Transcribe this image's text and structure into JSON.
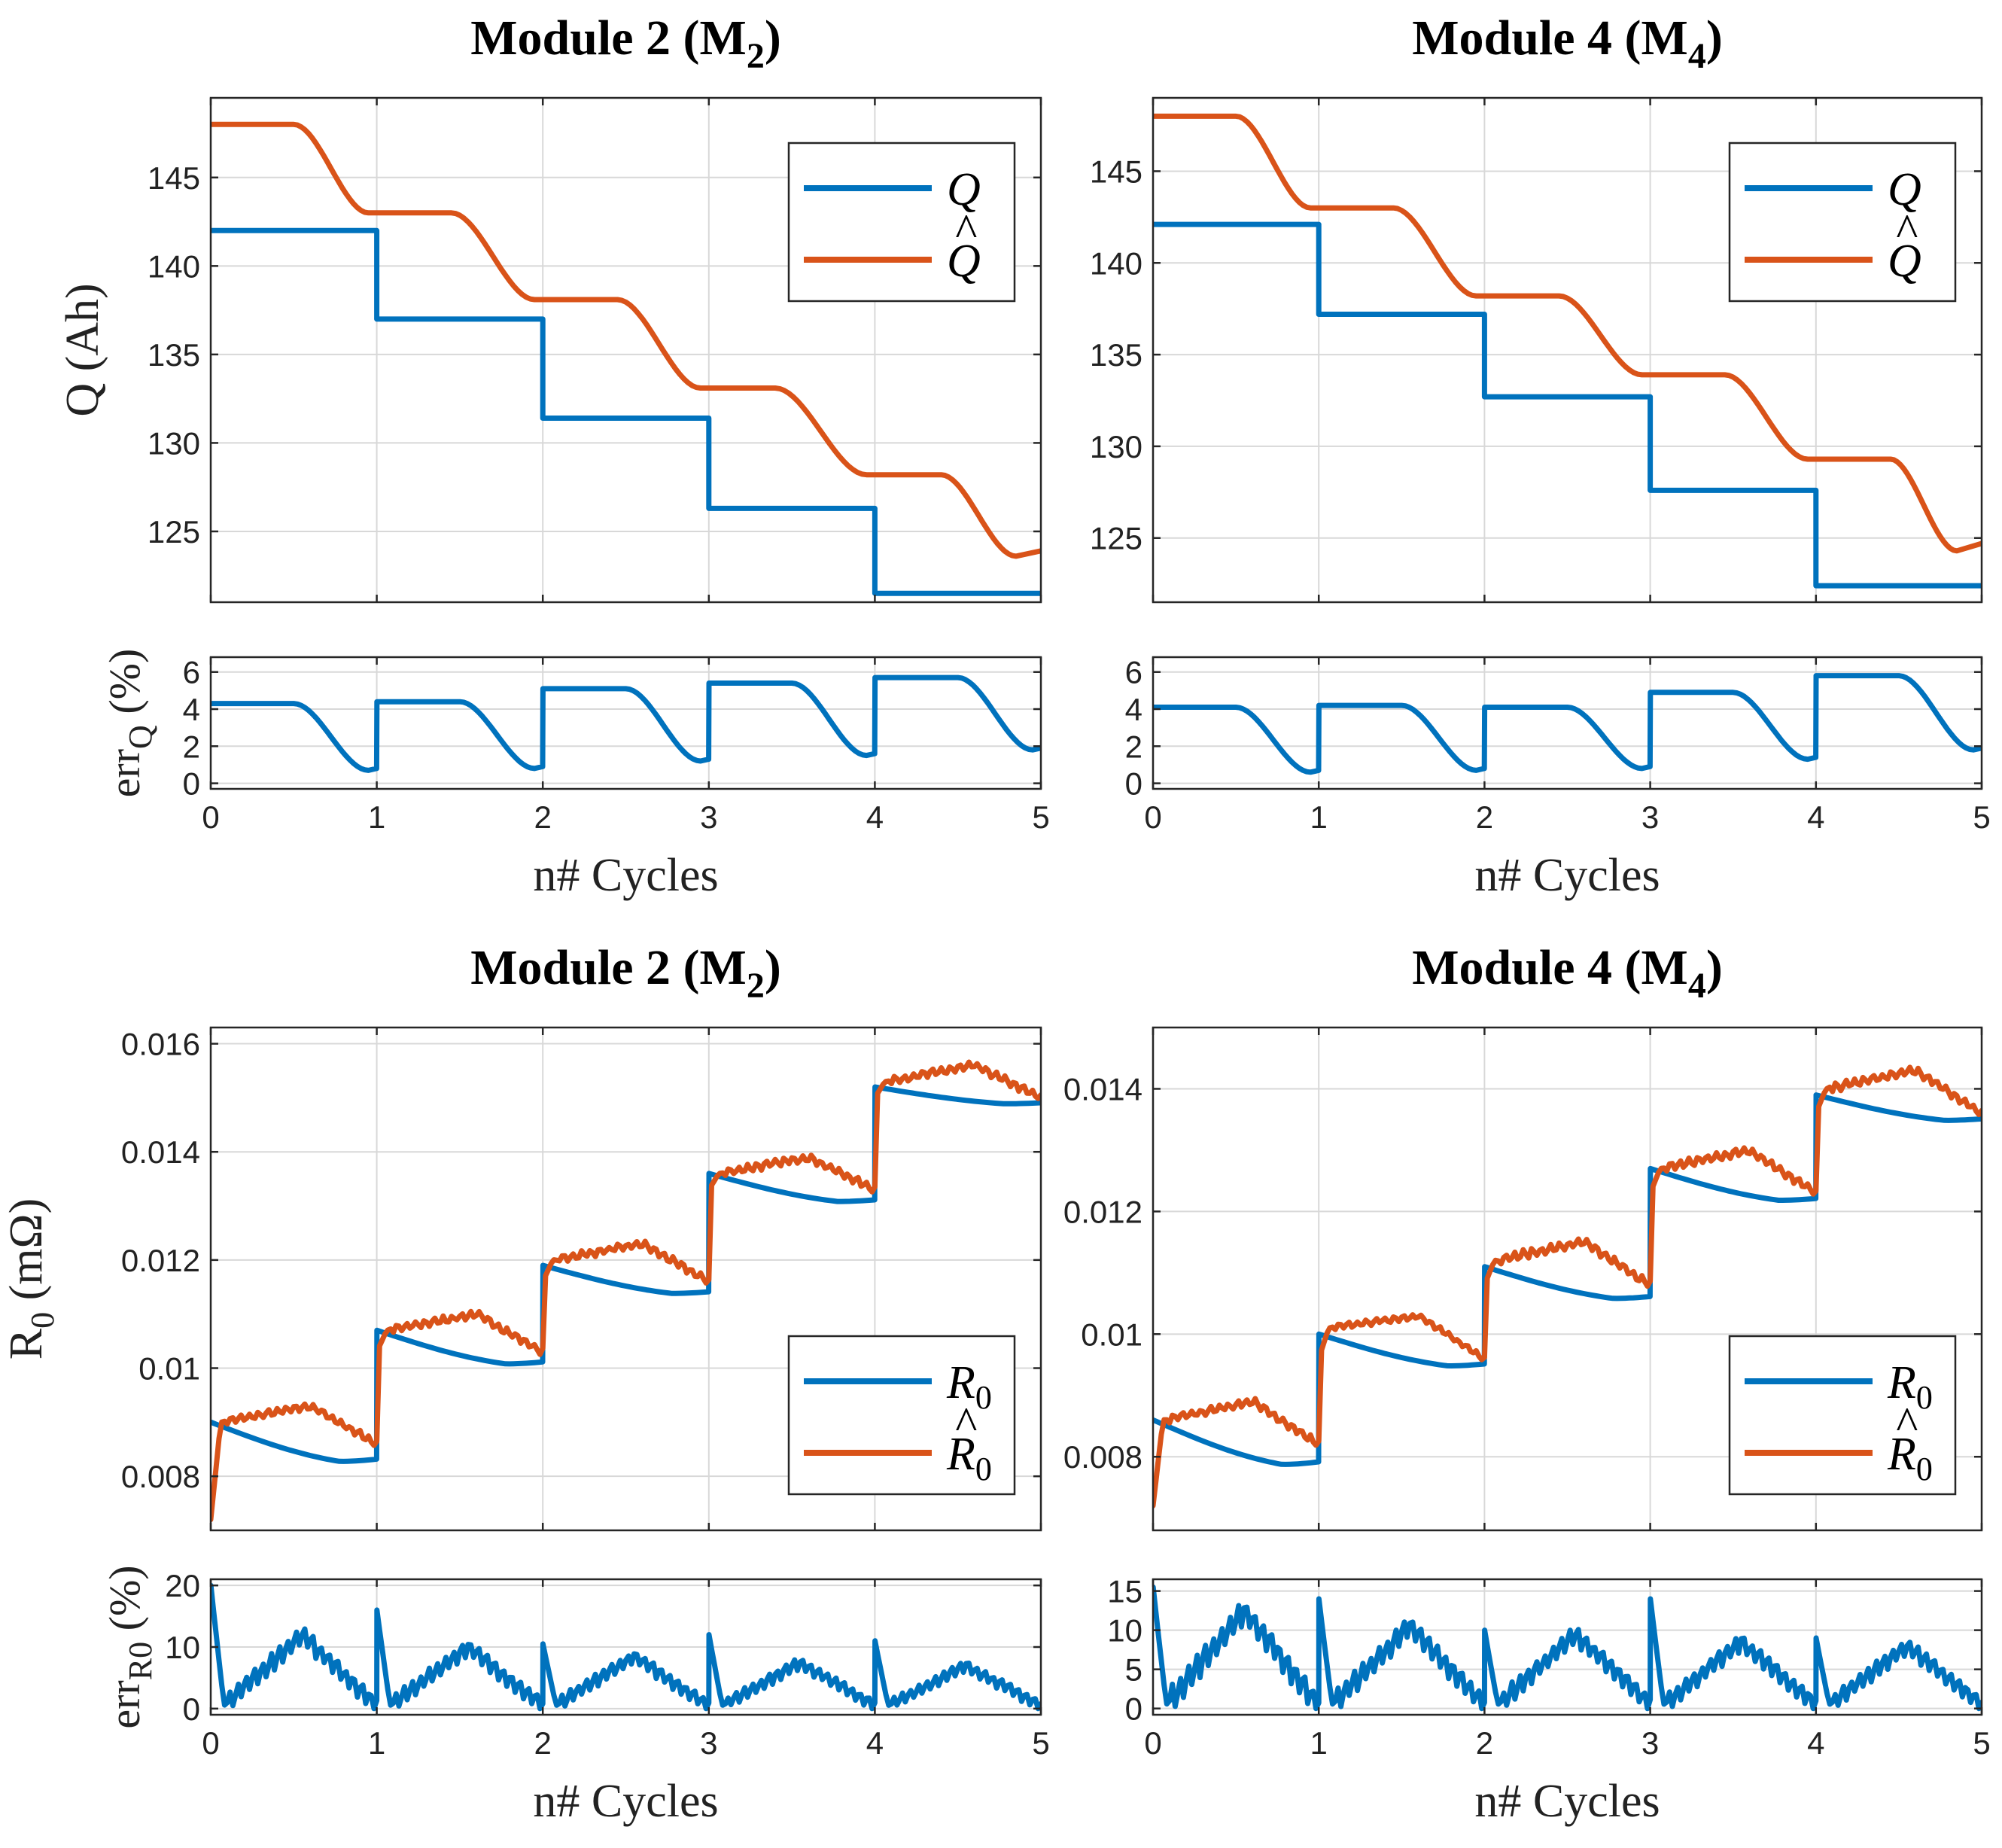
{
  "colors": {
    "blue": "#0072BD",
    "orange": "#D95319"
  },
  "chart_data": [
    {
      "id": "q-m2",
      "type": "line",
      "title": "Module 2 (M",
      "title_sub": "2",
      "title_end": ")",
      "ylabel": "Q (Ah)",
      "xlabel": "",
      "xlim": [
        0,
        5
      ],
      "ylim": [
        121,
        149.5
      ],
      "xticks": [
        0,
        1,
        2,
        3,
        4,
        5
      ],
      "xticklabels_visible": false,
      "yticks": [
        125,
        130,
        135,
        140,
        145
      ],
      "legend": {
        "location": "top-right",
        "entries": [
          {
            "label": "Q",
            "sub": "",
            "hat": false
          },
          {
            "label": "Q",
            "sub": "",
            "hat": true
          }
        ]
      },
      "series": [
        {
          "name": "Q",
          "color": "blue",
          "kind": "steps",
          "steps": [
            142,
            137,
            131.4,
            126.3,
            121.5
          ]
        },
        {
          "name": "Q̂",
          "color": "orange",
          "kind": "ramps",
          "x0": 0,
          "start": 148,
          "drops": [
            [
              0.5,
              0.95,
              143
            ],
            [
              1.45,
              1.95,
              138.1
            ],
            [
              2.45,
              2.95,
              133.1
            ],
            [
              3.4,
              3.95,
              128.2
            ],
            [
              4.4,
              4.85,
              123.6
            ]
          ],
          "end": 123.9
        }
      ]
    },
    {
      "id": "q-m4",
      "type": "line",
      "title": "Module 4 (M",
      "title_sub": "4",
      "title_end": ")",
      "ylabel": "",
      "xlabel": "",
      "xlim": [
        0,
        5
      ],
      "ylim": [
        121.5,
        149
      ],
      "xticks": [
        0,
        1,
        2,
        3,
        4,
        5
      ],
      "xticklabels_visible": false,
      "yticks": [
        125,
        130,
        135,
        140,
        145
      ],
      "legend": {
        "location": "top-right",
        "entries": [
          {
            "label": "Q",
            "sub": "",
            "hat": false
          },
          {
            "label": "Q",
            "sub": "",
            "hat": true
          }
        ]
      },
      "series": [
        {
          "name": "Q",
          "color": "blue",
          "kind": "steps",
          "steps": [
            142.1,
            137.2,
            132.7,
            127.6,
            122.4
          ]
        },
        {
          "name": "Q̂",
          "color": "orange",
          "kind": "ramps",
          "x0": 0,
          "start": 148,
          "drops": [
            [
              0.5,
              0.95,
              143
            ],
            [
              1.45,
              1.95,
              138.2
            ],
            [
              2.45,
              2.95,
              133.9
            ],
            [
              3.45,
              3.95,
              129.3
            ],
            [
              4.45,
              4.85,
              124.3
            ]
          ],
          "end": 124.7
        }
      ]
    },
    {
      "id": "errq-m2",
      "type": "line",
      "ylabel": "err",
      "ylabel_sub": "Q",
      "ylabel_end": " (%)",
      "xlabel": "n# Cycles",
      "xlim": [
        0,
        5
      ],
      "ylim": [
        -0.3,
        6.8
      ],
      "xticks": [
        0,
        1,
        2,
        3,
        4,
        5
      ],
      "xticklabels_visible": true,
      "yticks": [
        0,
        2,
        4,
        6
      ],
      "series": [
        {
          "name": "err_Q",
          "color": "blue",
          "kind": "errq",
          "cycles": [
            [
              4.3,
              0.7
            ],
            [
              4.4,
              0.8
            ],
            [
              5.1,
              1.2
            ],
            [
              5.4,
              1.5
            ],
            [
              5.7,
              1.8
            ]
          ]
        }
      ]
    },
    {
      "id": "errq-m4",
      "type": "line",
      "ylabel": "",
      "xlabel": "n# Cycles",
      "xlim": [
        0,
        5
      ],
      "ylim": [
        -0.3,
        6.8
      ],
      "xticks": [
        0,
        1,
        2,
        3,
        4,
        5
      ],
      "xticklabels_visible": true,
      "yticks": [
        0,
        2,
        4,
        6
      ],
      "series": [
        {
          "name": "err_Q",
          "color": "blue",
          "kind": "errq",
          "cycles": [
            [
              4.1,
              0.6
            ],
            [
              4.2,
              0.7
            ],
            [
              4.1,
              0.8
            ],
            [
              4.9,
              1.3
            ],
            [
              5.8,
              1.8
            ]
          ]
        }
      ]
    },
    {
      "id": "r0-m2",
      "type": "line",
      "title": "Module 2 (M",
      "title_sub": "2",
      "title_end": ")",
      "ylabel": "R",
      "ylabel_sub": "0",
      "ylabel_end": " (mΩ)",
      "xlabel": "",
      "xlim": [
        0,
        5
      ],
      "ylim": [
        0.007,
        0.0163
      ],
      "xticks": [
        0,
        1,
        2,
        3,
        4,
        5
      ],
      "xticklabels_visible": false,
      "yticks": [
        0.008,
        0.01,
        0.012,
        0.014,
        0.016
      ],
      "ytickformat": "short",
      "legend": {
        "location": "bottom-right",
        "entries": [
          {
            "label": "R",
            "sub": "0",
            "hat": false
          },
          {
            "label": "R",
            "sub": "0",
            "hat": true
          }
        ]
      },
      "series": [
        {
          "name": "R0",
          "color": "blue",
          "kind": "rtrue",
          "cycles": [
            [
              0.009,
              0.0083
            ],
            [
              0.0107,
              0.0101
            ],
            [
              0.0119,
              0.0114
            ],
            [
              0.0136,
              0.0131
            ],
            [
              0.0152,
              0.0149
            ]
          ]
        },
        {
          "name": "R̂0",
          "color": "orange",
          "kind": "rest",
          "start": 0.0072,
          "cycles": [
            [
              0.009,
              0.0093,
              0.0086
            ],
            [
              0.0107,
              0.011,
              0.0103
            ],
            [
              0.012,
              0.0123,
              0.0116
            ],
            [
              0.0136,
              0.0139,
              0.0133
            ],
            [
              0.0153,
              0.0156,
              0.015
            ]
          ]
        }
      ]
    },
    {
      "id": "r0-m4",
      "type": "line",
      "title": "Module 4 (M",
      "title_sub": "4",
      "title_end": ")",
      "ylabel": "",
      "xlabel": "",
      "xlim": [
        0,
        5
      ],
      "ylim": [
        0.0068,
        0.015
      ],
      "xticks": [
        0,
        1,
        2,
        3,
        4,
        5
      ],
      "xticklabels_visible": false,
      "yticks": [
        0.008,
        0.01,
        0.012,
        0.014
      ],
      "ytickformat": "short",
      "legend": {
        "location": "bottom-right",
        "entries": [
          {
            "label": "R",
            "sub": "0",
            "hat": false
          },
          {
            "label": "R",
            "sub": "0",
            "hat": true
          }
        ]
      },
      "series": [
        {
          "name": "R0",
          "color": "blue",
          "kind": "rtrue",
          "cycles": [
            [
              0.0086,
              0.0079
            ],
            [
              0.01,
              0.0095
            ],
            [
              0.0111,
              0.0106
            ],
            [
              0.0127,
              0.0122
            ],
            [
              0.0139,
              0.0135
            ]
          ]
        },
        {
          "name": "R̂0",
          "color": "orange",
          "kind": "rest",
          "start": 0.0072,
          "cycles": [
            [
              0.0086,
              0.0089,
              0.0082
            ],
            [
              0.0101,
              0.0103,
              0.0096
            ],
            [
              0.0112,
              0.0115,
              0.0108
            ],
            [
              0.0127,
              0.013,
              0.0123
            ],
            [
              0.014,
              0.0143,
              0.0136
            ]
          ]
        }
      ]
    },
    {
      "id": "err-r0-m2",
      "type": "line",
      "ylabel": "err",
      "ylabel_sub": "R0",
      "ylabel_end": " (%)",
      "xlabel": "n# Cycles",
      "xlim": [
        0,
        5
      ],
      "ylim": [
        -1,
        21
      ],
      "xticks": [
        0,
        1,
        2,
        3,
        4,
        5
      ],
      "xticklabels_visible": true,
      "yticks": [
        0,
        10,
        20
      ],
      "series": [
        {
          "name": "err_R0",
          "color": "blue",
          "kind": "errr",
          "cycles": [
            [
              20,
              12
            ],
            [
              16,
              10
            ],
            [
              10.5,
              8.5
            ],
            [
              12,
              7.5
            ],
            [
              11,
              7
            ]
          ]
        }
      ]
    },
    {
      "id": "err-r0-m4",
      "type": "line",
      "ylabel": "",
      "xlabel": "n# Cycles",
      "xlim": [
        0,
        5
      ],
      "ylim": [
        -0.8,
        16.5
      ],
      "xticks": [
        0,
        1,
        2,
        3,
        4,
        5
      ],
      "xticklabels_visible": true,
      "yticks": [
        0,
        5,
        10,
        15
      ],
      "series": [
        {
          "name": "err_R0",
          "color": "blue",
          "kind": "errr",
          "cycles": [
            [
              15.5,
              12.5
            ],
            [
              14,
              10.5
            ],
            [
              10,
              9.5
            ],
            [
              14,
              8.5
            ],
            [
              9,
              8
            ]
          ]
        }
      ]
    }
  ]
}
